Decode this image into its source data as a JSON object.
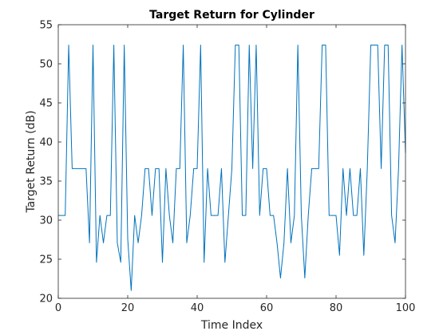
{
  "chart_data": {
    "type": "line",
    "title": "Target Return for Cylinder",
    "xlabel": "Time Index",
    "ylabel": "Target Return (dB)",
    "xlim": [
      0,
      100
    ],
    "ylim": [
      20,
      55
    ],
    "xticks": [
      0,
      20,
      40,
      60,
      80,
      100
    ],
    "yticks": [
      20,
      25,
      30,
      35,
      40,
      45,
      50,
      55
    ],
    "grid": false,
    "line_color": "#0072BD",
    "series": [
      {
        "x": [
          0,
          1,
          2,
          3,
          4,
          5,
          6,
          7,
          8,
          9,
          10,
          11,
          12,
          13,
          14,
          15,
          16,
          17,
          18,
          19,
          20,
          21,
          22,
          23,
          24,
          25,
          26,
          27,
          28,
          29,
          30,
          31,
          32,
          33,
          34,
          35,
          36,
          37,
          38,
          39,
          40,
          41,
          42,
          43,
          44,
          45,
          46,
          47,
          48,
          49,
          50,
          51,
          52,
          53,
          54,
          55,
          56,
          57,
          58,
          59,
          60,
          61,
          62,
          63,
          64,
          65,
          66,
          67,
          68,
          69,
          70,
          71,
          72,
          73,
          74,
          75,
          76,
          77,
          78,
          79,
          80,
          81,
          82,
          83,
          84,
          85,
          86,
          87,
          88,
          89,
          90,
          91,
          92,
          93,
          94,
          95,
          96,
          97,
          98,
          99,
          100
        ],
        "values": [
          30.6,
          30.6,
          30.6,
          52.4,
          36.6,
          36.6,
          36.6,
          36.6,
          36.6,
          27.1,
          52.4,
          24.6,
          30.6,
          27.1,
          30.6,
          30.6,
          52.4,
          27.1,
          24.6,
          52.4,
          27.6,
          21.0,
          30.6,
          27.1,
          30.6,
          36.6,
          36.6,
          30.6,
          36.6,
          36.6,
          24.6,
          36.6,
          30.6,
          27.1,
          36.6,
          36.6,
          52.4,
          27.1,
          30.6,
          36.6,
          36.6,
          52.4,
          24.6,
          36.6,
          30.6,
          30.6,
          30.6,
          36.6,
          24.6,
          30.6,
          36.6,
          52.4,
          52.4,
          30.6,
          30.6,
          52.4,
          36.6,
          52.4,
          30.6,
          36.6,
          36.6,
          30.6,
          30.6,
          27.1,
          22.6,
          27.1,
          36.6,
          27.1,
          30.6,
          52.4,
          30.6,
          22.6,
          30.6,
          36.6,
          36.6,
          36.6,
          52.4,
          52.4,
          30.6,
          30.6,
          30.6,
          25.5,
          36.6,
          30.6,
          36.6,
          30.6,
          30.6,
          36.6,
          25.5,
          36.6,
          52.4,
          52.4,
          52.4,
          36.6,
          52.4,
          52.4,
          30.6,
          27.1,
          36.6,
          52.4,
          38.6
        ]
      }
    ]
  }
}
